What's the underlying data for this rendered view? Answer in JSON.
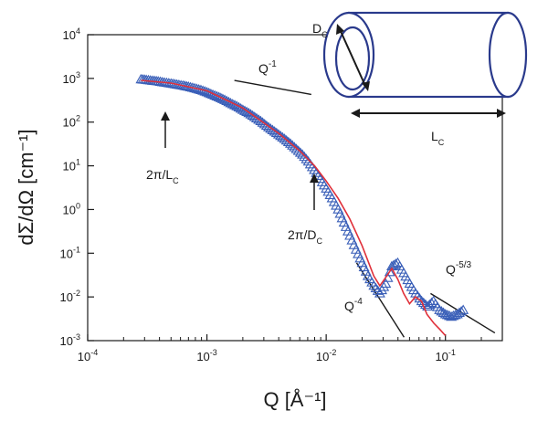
{
  "chart_data": {
    "type": "scatter",
    "xscale": "log",
    "yscale": "log",
    "xlim": [
      0.0001,
      0.3
    ],
    "ylim": [
      0.001,
      10000
    ],
    "xlabel": "Q [Å⁻¹]",
    "ylabel": "dΣ/dΩ [cm⁻¹]",
    "xticks": [
      {
        "value": 0.0001,
        "base": "10",
        "exp": "-4"
      },
      {
        "value": 0.001,
        "base": "10",
        "exp": "-3"
      },
      {
        "value": 0.01,
        "base": "10",
        "exp": "-2"
      },
      {
        "value": 0.1,
        "base": "10",
        "exp": "-1"
      }
    ],
    "yticks": [
      {
        "value": 0.001,
        "base": "10",
        "exp": "-3"
      },
      {
        "value": 0.01,
        "base": "10",
        "exp": "-2"
      },
      {
        "value": 0.1,
        "base": "10",
        "exp": "-1"
      },
      {
        "value": 1,
        "base": "10",
        "exp": "0"
      },
      {
        "value": 10,
        "base": "10",
        "exp": "1"
      },
      {
        "value": 100,
        "base": "10",
        "exp": "2"
      },
      {
        "value": 1000,
        "base": "10",
        "exp": "3"
      },
      {
        "value": 10000,
        "base": "10",
        "exp": "4"
      }
    ],
    "series": [
      {
        "marker": "triangle",
        "color": "#3a5fb8",
        "x": [
          0.00028,
          0.00031,
          0.00035,
          0.00039,
          0.00044,
          0.0005,
          0.00056,
          0.00063,
          0.0007,
          0.00079,
          0.00089,
          0.001,
          0.00112,
          0.00126,
          0.00141,
          0.00158,
          0.00178,
          0.002,
          0.00224,
          0.00251,
          0.00282,
          0.00316,
          0.00355,
          0.00398,
          0.00447,
          0.00501,
          0.00562,
          0.00631,
          0.00708,
          0.00794,
          0.00891,
          0.01,
          0.0112,
          0.0126,
          0.0141,
          0.0158,
          0.0178,
          0.02,
          0.0224,
          0.0251,
          0.0282,
          0.0316,
          0.0355,
          0.0398,
          0.0447,
          0.0501,
          0.0562,
          0.0631,
          0.0708,
          0.0794,
          0.0891,
          0.1,
          0.112,
          0.126,
          0.141
        ],
        "y": [
          950,
          920,
          880,
          850,
          800,
          760,
          720,
          680,
          640,
          590,
          540,
          480,
          420,
          370,
          320,
          270,
          230,
          190,
          160,
          130,
          105,
          82,
          65,
          52,
          41,
          32,
          24,
          18,
          12.5,
          8,
          5,
          3,
          1.8,
          1,
          0.5,
          0.25,
          0.12,
          0.06,
          0.03,
          0.018,
          0.012,
          0.02,
          0.05,
          0.06,
          0.035,
          0.02,
          0.012,
          0.008,
          0.006,
          0.008,
          0.005,
          0.004,
          0.0035,
          0.004,
          0.005
        ]
      },
      {
        "type": "line",
        "color": "#e0303a",
        "x": [
          0.00028,
          0.0005,
          0.001,
          0.002,
          0.004,
          0.006,
          0.008,
          0.01,
          0.0126,
          0.0158,
          0.02,
          0.0251,
          0.0282,
          0.0316,
          0.0355,
          0.04,
          0.0447,
          0.05,
          0.056,
          0.063,
          0.07,
          0.08,
          0.09,
          0.1
        ],
        "y": [
          900,
          780,
          520,
          210,
          55,
          22,
          10,
          4.5,
          1.8,
          0.6,
          0.15,
          0.03,
          0.018,
          0.028,
          0.045,
          0.025,
          0.012,
          0.007,
          0.01,
          0.008,
          0.004,
          0.0025,
          0.0018,
          0.0013
        ]
      }
    ],
    "guides": [
      {
        "name": "Q-1 slope",
        "x": [
          0.0017,
          0.0075
        ],
        "y": [
          900,
          430
        ]
      },
      {
        "name": "Q-4 slope",
        "x": [
          0.018,
          0.045
        ],
        "y": [
          0.06,
          0.0012
        ]
      },
      {
        "name": "Q-5/3 slope",
        "x": [
          0.075,
          0.26
        ],
        "y": [
          0.012,
          0.0015
        ]
      }
    ],
    "annotations": {
      "q_minus1": {
        "base": "Q",
        "exp": "-1"
      },
      "q_minus4": {
        "base": "Q",
        "exp": "-4"
      },
      "q_minus53": {
        "base": "Q",
        "exp": "-5/3"
      },
      "arrow_length": {
        "main": "2π/L",
        "sub": "C"
      },
      "arrow_diameter": {
        "main": "2π/D",
        "sub": "C"
      },
      "cyl_d": {
        "main": "D",
        "sub": "C"
      },
      "cyl_l": {
        "main": "L",
        "sub": "C"
      }
    }
  }
}
